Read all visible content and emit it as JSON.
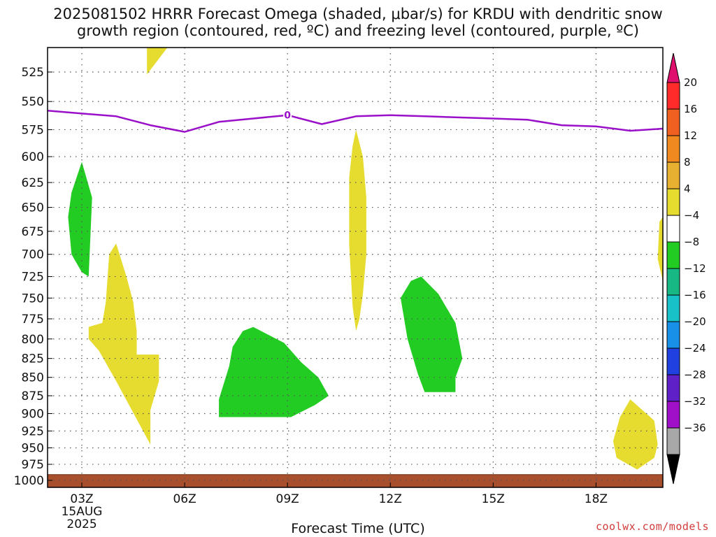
{
  "chart_data": {
    "type": "heatmap",
    "title": {
      "line1": "2025081502 HRRR Forecast Omega (shaded, μbar/s) for KRDU with dendritic snow",
      "line2": "growth region (contoured, red, ºC) and freezing level (contoured, purple, ºC)"
    },
    "xlabel": "Forecast Time (UTC)",
    "x_ticks": [
      {
        "hour": 3,
        "label": "03Z",
        "sub1": "15AUG",
        "sub2": "2025"
      },
      {
        "hour": 6,
        "label": "06Z"
      },
      {
        "hour": 9,
        "label": "09Z"
      },
      {
        "hour": 12,
        "label": "12Z"
      },
      {
        "hour": 15,
        "label": "15Z"
      },
      {
        "hour": 18,
        "label": "18Z"
      }
    ],
    "x_range": [
      2,
      19.95
    ],
    "y_levels": [
      525,
      550,
      575,
      600,
      625,
      650,
      675,
      700,
      725,
      750,
      775,
      800,
      825,
      850,
      875,
      900,
      925,
      950,
      975,
      1000
    ],
    "colorbar": {
      "labels": [
        "20",
        "16",
        "12",
        "8",
        "4",
        "-4",
        "-8",
        "-12",
        "-16",
        "-20",
        "-24",
        "-28",
        "-32",
        "-36"
      ],
      "colors": [
        "#ff2a2a",
        "#f06020",
        "#f08a20",
        "#e8b030",
        "#e6dc30",
        "#ffffff",
        "#22cc22",
        "#18b884",
        "#18c0c8",
        "#1890e8",
        "#2040e0",
        "#6020c8",
        "#a010c8",
        "#a8a8a8"
      ],
      "top_arrow_color": "#e0106e",
      "bottom_arrow_color": "#000000"
    },
    "freezing_level": {
      "color": "#9a10c8",
      "label": "0",
      "label_hour": 9,
      "points": [
        [
          2.0,
          558
        ],
        [
          4.0,
          563
        ],
        [
          5.0,
          571
        ],
        [
          6.0,
          577
        ],
        [
          7.0,
          568
        ],
        [
          8.0,
          565
        ],
        [
          9.0,
          562
        ],
        [
          10.0,
          570
        ],
        [
          11.0,
          563
        ],
        [
          12.0,
          562
        ],
        [
          13.0,
          563
        ],
        [
          15.0,
          565
        ],
        [
          16.0,
          566
        ],
        [
          17.0,
          571
        ],
        [
          18.0,
          572
        ],
        [
          19.0,
          576
        ],
        [
          20.0,
          574
        ]
      ]
    },
    "omega_regions": [
      {
        "value_class": "4 to 8",
        "color": "#e6dc30",
        "points": [
          [
            4.9,
            505
          ],
          [
            5.5,
            505
          ],
          [
            4.9,
            527
          ]
        ]
      },
      {
        "value_class": "-8 to -4",
        "color": "#22cc22",
        "points": [
          [
            3.0,
            605
          ],
          [
            3.3,
            640
          ],
          [
            3.2,
            725
          ],
          [
            3.0,
            720
          ],
          [
            2.7,
            700
          ],
          [
            2.6,
            660
          ],
          [
            2.7,
            635
          ]
        ]
      },
      {
        "value_class": "4 to 8",
        "color": "#e6dc30",
        "points": [
          [
            4.0,
            688
          ],
          [
            4.3,
            725
          ],
          [
            4.5,
            755
          ],
          [
            4.6,
            790
          ],
          [
            4.6,
            820
          ],
          [
            5.25,
            820
          ],
          [
            5.25,
            855
          ],
          [
            5.0,
            895
          ],
          [
            5.0,
            945
          ],
          [
            4.4,
            890
          ],
          [
            4.0,
            855
          ],
          [
            3.5,
            815
          ],
          [
            3.2,
            800
          ],
          [
            3.2,
            785
          ],
          [
            3.6,
            780
          ],
          [
            3.7,
            755
          ],
          [
            3.8,
            700
          ]
        ]
      },
      {
        "value_class": "-8 to -4",
        "color": "#22cc22",
        "points": [
          [
            8.0,
            785
          ],
          [
            8.9,
            805
          ],
          [
            9.4,
            830
          ],
          [
            9.9,
            850
          ],
          [
            10.2,
            875
          ],
          [
            9.8,
            888
          ],
          [
            9.1,
            905
          ],
          [
            7.0,
            905
          ],
          [
            7.0,
            880
          ],
          [
            7.3,
            835
          ],
          [
            7.4,
            810
          ],
          [
            7.7,
            790
          ]
        ]
      },
      {
        "value_class": "4 to 8",
        "color": "#e6dc30",
        "points": [
          [
            11.0,
            575
          ],
          [
            11.2,
            600
          ],
          [
            11.3,
            640
          ],
          [
            11.3,
            700
          ],
          [
            11.2,
            745
          ],
          [
            11.1,
            775
          ],
          [
            11.0,
            790
          ],
          [
            10.9,
            760
          ],
          [
            10.8,
            690
          ],
          [
            10.8,
            620
          ],
          [
            10.9,
            590
          ]
        ]
      },
      {
        "value_class": "-8 to -4",
        "color": "#22cc22",
        "points": [
          [
            12.9,
            725
          ],
          [
            13.4,
            745
          ],
          [
            13.9,
            780
          ],
          [
            14.1,
            825
          ],
          [
            13.9,
            850
          ],
          [
            13.9,
            870
          ],
          [
            13.0,
            870
          ],
          [
            12.8,
            845
          ],
          [
            12.5,
            800
          ],
          [
            12.3,
            750
          ],
          [
            12.6,
            730
          ]
        ]
      },
      {
        "value_class": "4 to 8",
        "color": "#e6dc30",
        "points": [
          [
            19.85,
            665
          ],
          [
            19.95,
            660
          ],
          [
            19.95,
            730
          ],
          [
            19.8,
            705
          ]
        ]
      },
      {
        "value_class": "4 to 8",
        "color": "#e6dc30",
        "points": [
          [
            19.0,
            880
          ],
          [
            19.7,
            910
          ],
          [
            19.8,
            945
          ],
          [
            19.7,
            965
          ],
          [
            19.2,
            983
          ],
          [
            18.6,
            965
          ],
          [
            18.5,
            940
          ],
          [
            18.7,
            905
          ]
        ]
      }
    ],
    "ground": {
      "color": "#a8502e",
      "top_level": 991
    }
  },
  "watermark": "coolwx.com/models"
}
